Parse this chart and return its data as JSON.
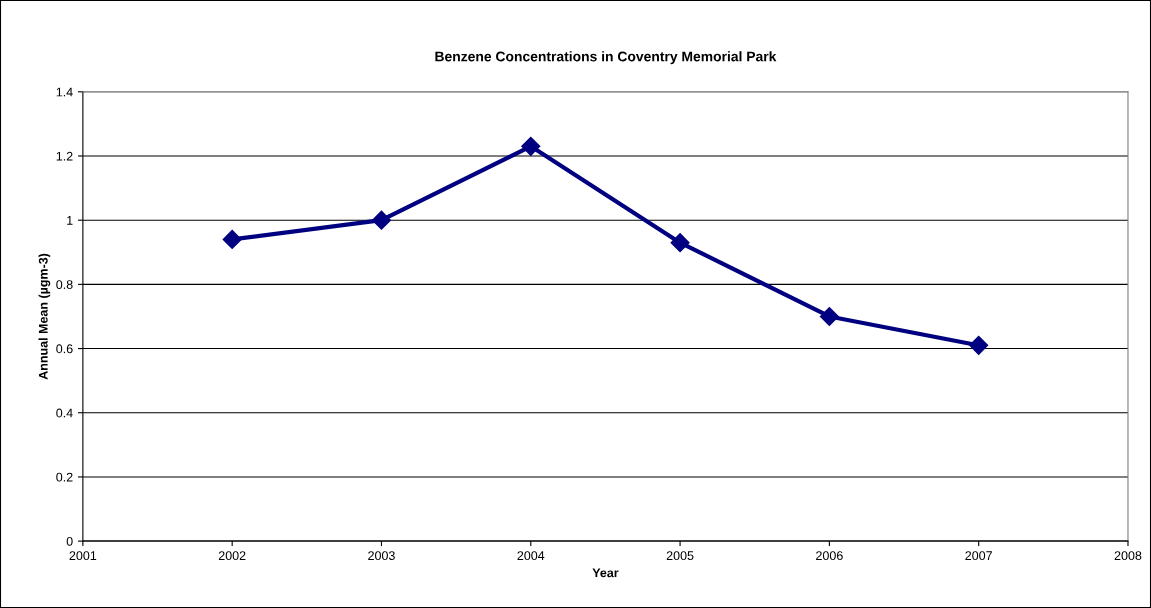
{
  "chart_data": {
    "type": "line",
    "title": "Benzene Concentrations in Coventry Memorial Park",
    "xlabel": "Year",
    "ylabel": "Annual Mean (µgm-3)",
    "x": [
      2002,
      2003,
      2004,
      2005,
      2006,
      2007
    ],
    "series": [
      {
        "color": "#000080",
        "values": [
          0.94,
          1.0,
          1.23,
          0.93,
          0.7,
          0.61
        ]
      }
    ],
    "xlim": [
      2001,
      2008
    ],
    "xticks": [
      2001,
      2002,
      2003,
      2004,
      2005,
      2006,
      2007,
      2008
    ],
    "ylim": [
      0,
      1.4
    ],
    "yticks": [
      0,
      0.2,
      0.4,
      0.6,
      0.8,
      1,
      1.2,
      1.4
    ],
    "grid": "y",
    "marker": "diamond",
    "line_style": "solid",
    "legend": false
  }
}
